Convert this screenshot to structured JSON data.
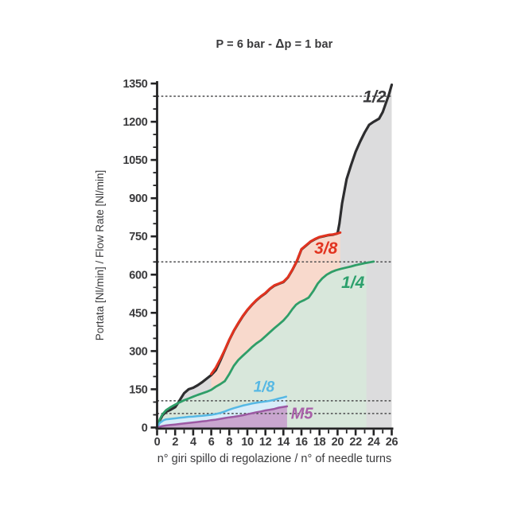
{
  "title_parts": {
    "before_delta": "P = 6 bar - ",
    "delta": "Δ",
    "after_delta": "p = 1 bar"
  },
  "chart_data": {
    "type": "line",
    "title": "P = 6 bar - Δp = 1 bar",
    "xlabel": "n° giri spillo di regolazione / n° of needle turns",
    "ylabel": "Portata [Nl/min] / Flow Rate [Nl/min]",
    "grid": false,
    "legend_position": "inline-labels",
    "x_axis": {
      "min": 0,
      "max": 26,
      "major_step": 2,
      "minor_step": 1,
      "tick_labels": [
        "0",
        "2",
        "4",
        "6",
        "8",
        "10",
        "12",
        "14",
        "16",
        "18",
        "20",
        "22",
        "24",
        "26"
      ]
    },
    "y_axis": {
      "min": 0,
      "max": 1350,
      "major_step": 150,
      "minor_step": 50,
      "tick_labels": [
        "0",
        "150",
        "300",
        "450",
        "600",
        "750",
        "900",
        "1050",
        "1200",
        "1350"
      ]
    },
    "reference_lines": [
      1300,
      650,
      105,
      55
    ],
    "reference_line_color": "#4b4b4d",
    "axis_color": "#232324",
    "text_color": "#3a3a3c",
    "series": [
      {
        "id": "half",
        "name": "1/2",
        "stroke": "#2d2d2f",
        "stroke_width": 3.2,
        "fill": "#dcdcdd",
        "fill_to": 26,
        "label": {
          "text": "1/2",
          "x": 24.1,
          "y": 1300,
          "size": 21,
          "color": "#39393b"
        },
        "points": [
          [
            0,
            0
          ],
          [
            0.3,
            28
          ],
          [
            0.6,
            48
          ],
          [
            1,
            62
          ],
          [
            1.5,
            70
          ],
          [
            2,
            80
          ],
          [
            2.3,
            95
          ],
          [
            2.7,
            118
          ],
          [
            3,
            135
          ],
          [
            3.5,
            150
          ],
          [
            4,
            156
          ],
          [
            4.5,
            166
          ],
          [
            5,
            178
          ],
          [
            5.5,
            192
          ],
          [
            6,
            206
          ],
          [
            6.5,
            225
          ],
          [
            7,
            262
          ],
          [
            7.5,
            303
          ],
          [
            8,
            344
          ],
          [
            8.5,
            379
          ],
          [
            9,
            409
          ],
          [
            9.5,
            437
          ],
          [
            10,
            461
          ],
          [
            10.5,
            481
          ],
          [
            11,
            499
          ],
          [
            11.5,
            514
          ],
          [
            12,
            527
          ],
          [
            12.5,
            544
          ],
          [
            13,
            557
          ],
          [
            13.5,
            564
          ],
          [
            14,
            571
          ],
          [
            14.5,
            589
          ],
          [
            15,
            619
          ],
          [
            15.5,
            654
          ],
          [
            16,
            699
          ],
          [
            16.5,
            714
          ],
          [
            17,
            729
          ],
          [
            17.5,
            739
          ],
          [
            18,
            747
          ],
          [
            18.5,
            751
          ],
          [
            19,
            755
          ],
          [
            19.5,
            757
          ],
          [
            20,
            762
          ],
          [
            20.2,
            800
          ],
          [
            20.5,
            880
          ],
          [
            21,
            975
          ],
          [
            21.5,
            1030
          ],
          [
            22,
            1082
          ],
          [
            22.5,
            1122
          ],
          [
            23,
            1158
          ],
          [
            23.5,
            1188
          ],
          [
            24,
            1200
          ],
          [
            24.6,
            1212
          ],
          [
            25,
            1238
          ],
          [
            25.4,
            1278
          ],
          [
            25.7,
            1308
          ],
          [
            26,
            1345
          ]
        ]
      },
      {
        "id": "three-eighths",
        "name": "3/8",
        "stroke": "#e2331f",
        "stroke_width": 3.0,
        "fill": "#f8d9cc",
        "fill_to": 20.3,
        "label": {
          "text": "3/8",
          "x": 18.7,
          "y": 705,
          "size": 21,
          "color": "#e2331f"
        },
        "points": [
          [
            6,
            210
          ],
          [
            6.5,
            235
          ],
          [
            7,
            268
          ],
          [
            7.5,
            305
          ],
          [
            8,
            345
          ],
          [
            8.5,
            380
          ],
          [
            9,
            410
          ],
          [
            9.5,
            438
          ],
          [
            10,
            462
          ],
          [
            10.5,
            482
          ],
          [
            11,
            500
          ],
          [
            11.5,
            515
          ],
          [
            12,
            528
          ],
          [
            12.5,
            545
          ],
          [
            13,
            558
          ],
          [
            13.5,
            565
          ],
          [
            14,
            572
          ],
          [
            14.5,
            590
          ],
          [
            15,
            620
          ],
          [
            15.5,
            655
          ],
          [
            16,
            700
          ],
          [
            16.5,
            715
          ],
          [
            17,
            730
          ],
          [
            17.5,
            740
          ],
          [
            18,
            748
          ],
          [
            18.5,
            752
          ],
          [
            19,
            756
          ],
          [
            19.5,
            758
          ],
          [
            20,
            762
          ],
          [
            20.3,
            765
          ]
        ]
      },
      {
        "id": "quarter",
        "name": "1/4",
        "stroke": "#2f9e68",
        "stroke_width": 2.8,
        "fill": "#d8e7db",
        "fill_to": 23.2,
        "label": {
          "text": "1/4",
          "x": 21.7,
          "y": 571,
          "size": 21,
          "color": "#2ca06c"
        },
        "points": [
          [
            0,
            0
          ],
          [
            0.3,
            32
          ],
          [
            0.6,
            52
          ],
          [
            1,
            68
          ],
          [
            1.5,
            80
          ],
          [
            2,
            90
          ],
          [
            2.5,
            99
          ],
          [
            3,
            107
          ],
          [
            3.5,
            114
          ],
          [
            4,
            121
          ],
          [
            4.5,
            128
          ],
          [
            5,
            134
          ],
          [
            5.5,
            140
          ],
          [
            6,
            148
          ],
          [
            6.5,
            160
          ],
          [
            7,
            170
          ],
          [
            7.5,
            182
          ],
          [
            8,
            210
          ],
          [
            8.5,
            242
          ],
          [
            9,
            265
          ],
          [
            9.5,
            282
          ],
          [
            10,
            298
          ],
          [
            10.5,
            315
          ],
          [
            11,
            330
          ],
          [
            11.5,
            342
          ],
          [
            12,
            358
          ],
          [
            12.5,
            374
          ],
          [
            13,
            390
          ],
          [
            13.5,
            405
          ],
          [
            14,
            420
          ],
          [
            14.5,
            440
          ],
          [
            15,
            465
          ],
          [
            15.4,
            482
          ],
          [
            15.8,
            492
          ],
          [
            16.3,
            500
          ],
          [
            16.8,
            510
          ],
          [
            17.3,
            535
          ],
          [
            17.8,
            565
          ],
          [
            18.3,
            585
          ],
          [
            18.8,
            600
          ],
          [
            19.3,
            610
          ],
          [
            19.8,
            617
          ],
          [
            20.3,
            622
          ],
          [
            21,
            628
          ],
          [
            21.5,
            632
          ],
          [
            22,
            637
          ],
          [
            22.5,
            641
          ],
          [
            23,
            645
          ],
          [
            23.5,
            648
          ],
          [
            24,
            651
          ]
        ]
      },
      {
        "id": "eighth",
        "name": "1/8",
        "stroke": "#56b8e4",
        "stroke_width": 2.5,
        "fill": "#d8edf9",
        "fill_to": 14.3,
        "label": {
          "text": "1/8",
          "x": 11.85,
          "y": 161,
          "size": 19,
          "color": "#56b8e4"
        },
        "points": [
          [
            0,
            0
          ],
          [
            0.3,
            18
          ],
          [
            0.7,
            28
          ],
          [
            1,
            32
          ],
          [
            1.5,
            34
          ],
          [
            2,
            36
          ],
          [
            2.5,
            38
          ],
          [
            3,
            40
          ],
          [
            3.5,
            42
          ],
          [
            4,
            43
          ],
          [
            4.5,
            45
          ],
          [
            5,
            46
          ],
          [
            5.5,
            48
          ],
          [
            6,
            50
          ],
          [
            6.5,
            53
          ],
          [
            7,
            57
          ],
          [
            7.5,
            63
          ],
          [
            8,
            70
          ],
          [
            8.5,
            76
          ],
          [
            9,
            81
          ],
          [
            9.5,
            86
          ],
          [
            10,
            90
          ],
          [
            10.5,
            94
          ],
          [
            11,
            97
          ],
          [
            11.5,
            100
          ],
          [
            12,
            102
          ],
          [
            12.5,
            105
          ],
          [
            13,
            109
          ],
          [
            13.5,
            114
          ],
          [
            14,
            118
          ],
          [
            14.3,
            121
          ]
        ]
      },
      {
        "id": "m5",
        "name": "M5",
        "stroke": "#9c59a3",
        "stroke_width": 2.5,
        "fill": "#c9a6cf",
        "fill_to": 14.4,
        "label": {
          "text": "M5",
          "x": 16.05,
          "y": 56,
          "size": 20,
          "color": "#a85fa8"
        },
        "points": [
          [
            0,
            0
          ],
          [
            0.5,
            5
          ],
          [
            1,
            8
          ],
          [
            1.5,
            10
          ],
          [
            2,
            12
          ],
          [
            2.5,
            14
          ],
          [
            3,
            16
          ],
          [
            3.5,
            18
          ],
          [
            4,
            20
          ],
          [
            4.5,
            22
          ],
          [
            5,
            24
          ],
          [
            5.5,
            26
          ],
          [
            6,
            29
          ],
          [
            6.5,
            31
          ],
          [
            7,
            34
          ],
          [
            7.5,
            37
          ],
          [
            8,
            40
          ],
          [
            8.5,
            42
          ],
          [
            9,
            45
          ],
          [
            9.5,
            48
          ],
          [
            10,
            52
          ],
          [
            10.5,
            56
          ],
          [
            11,
            60
          ],
          [
            11.5,
            63
          ],
          [
            12,
            67
          ],
          [
            12.5,
            70
          ],
          [
            13,
            73
          ],
          [
            13.5,
            78
          ],
          [
            14,
            81
          ],
          [
            14.4,
            83
          ]
        ]
      }
    ]
  }
}
